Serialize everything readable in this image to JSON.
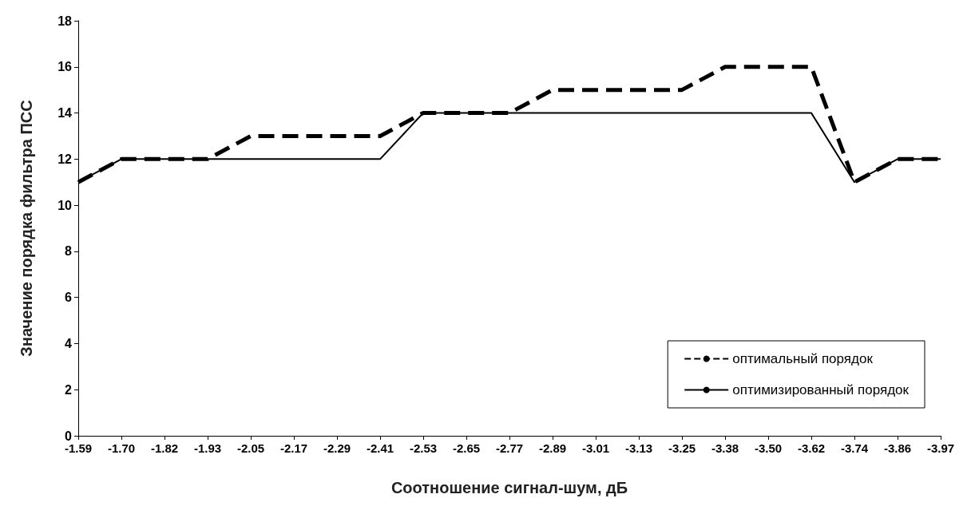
{
  "chart_data": {
    "type": "line",
    "xlabel": "Соотношение сигнал-шум, дБ",
    "ylabel": "Значение порядка фильтра ПСС",
    "categories": [
      "-1.59",
      "-1.70",
      "-1.82",
      "-1.93",
      "-2.05",
      "-2.17",
      "-2.29",
      "-2.41",
      "-2.53",
      "-2.65",
      "-2.77",
      "-2.89",
      "-3.01",
      "-3.13",
      "-3.25",
      "-3.38",
      "-3.50",
      "-3.62",
      "-3.74",
      "-3.86",
      "-3.97"
    ],
    "series": [
      {
        "name": "оптимальный порядок",
        "color": "#000000",
        "line_style": "dashed",
        "values": [
          11,
          12,
          12,
          12,
          13,
          13,
          13,
          13,
          14,
          14,
          14,
          15,
          15,
          15,
          15,
          16,
          16,
          16,
          11,
          12,
          12
        ]
      },
      {
        "name": "оптимизированный порядок",
        "color": "#000000",
        "line_style": "solid",
        "values": [
          11,
          12,
          12,
          12,
          12,
          12,
          12,
          12,
          14,
          14,
          14,
          14,
          14,
          14,
          14,
          14,
          14,
          14,
          11,
          12,
          12
        ]
      }
    ],
    "ylim": [
      0,
      18
    ],
    "yticks": [
      0,
      2,
      4,
      6,
      8,
      10,
      12,
      14,
      16,
      18
    ],
    "grid": false,
    "legend": "bottom right",
    "marker": "none"
  }
}
